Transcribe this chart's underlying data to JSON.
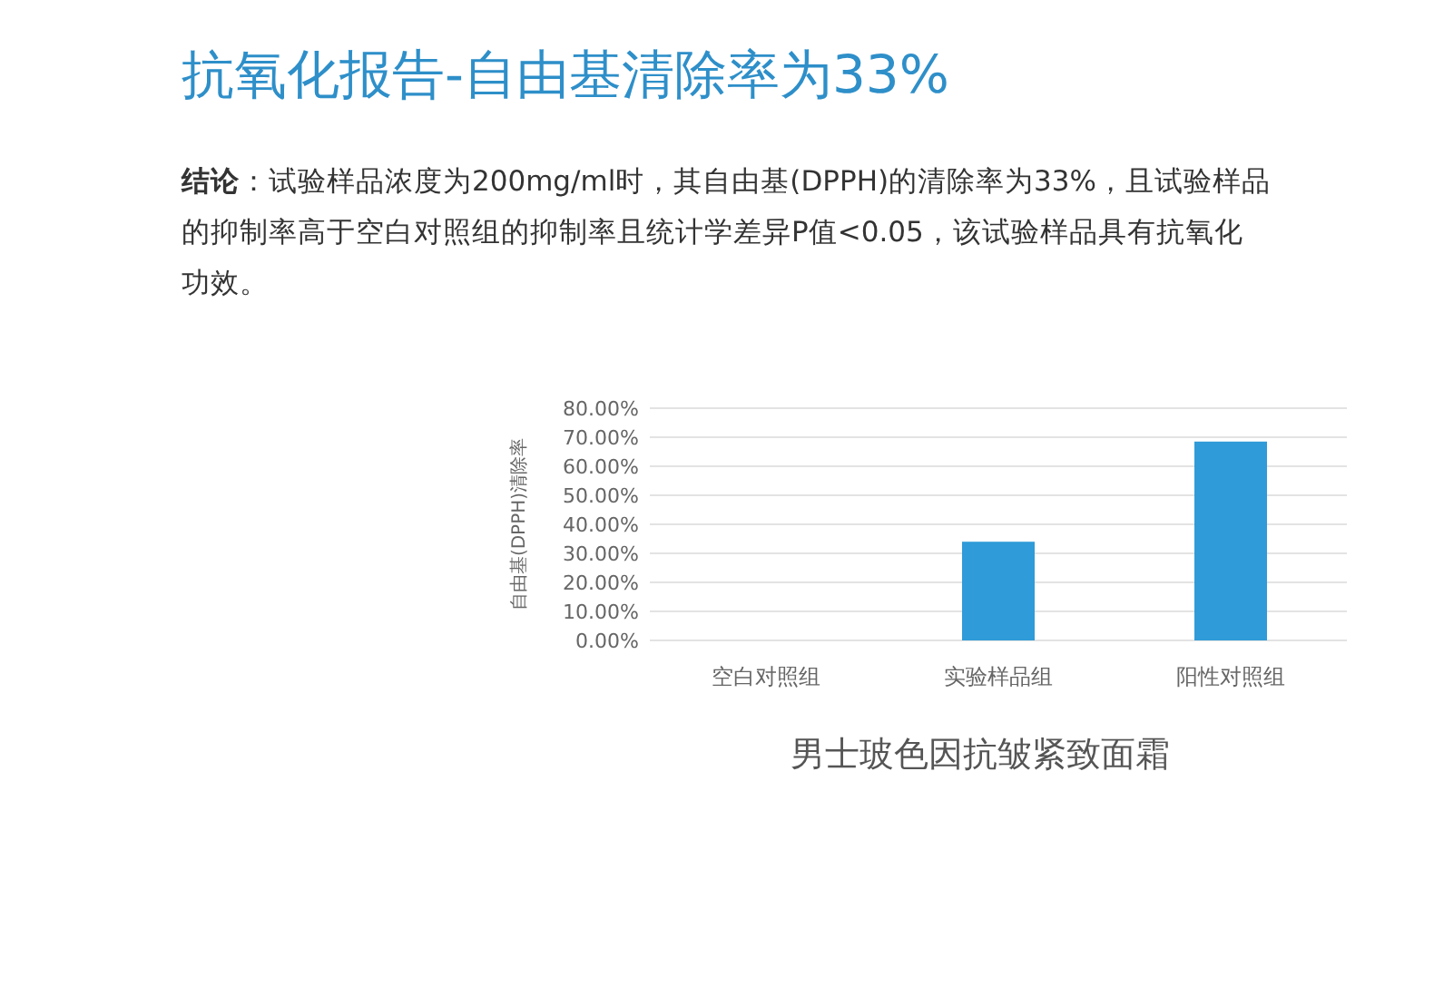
{
  "chart_data": {
    "type": "bar",
    "title": "抗氧化报告-自由基清除率为33%",
    "subtitle": "**结论**：试验样品浓度为200mg/ml时，其自由基(DPPH)的清除率为33%，且试验样品的抑制率高于空白对照组的抑制率且统计学差异P值<0.05，该试验样品具有抗氧化功效。",
    "xlabel": "男士玻色因抗皱紧致面霜",
    "ylabel": "自由基(DPPH)清除率",
    "categories": [
      "空白对照组",
      "实验样品组",
      "阳性对照组"
    ],
    "values": [
      0,
      34,
      68.5
    ],
    "color": "#2f9bd8",
    "ylim": [
      0,
      80
    ],
    "yticks": [
      {
        "value": 0,
        "label": "0.00%"
      },
      {
        "value": 10,
        "label": "10.00%"
      },
      {
        "value": 20,
        "label": "20.00%"
      },
      {
        "value": 30,
        "label": "30.00%"
      },
      {
        "value": 40,
        "label": "40.00%"
      },
      {
        "value": 50,
        "label": "50.00%"
      },
      {
        "value": 60,
        "label": "60.00%"
      },
      {
        "value": 70,
        "label": "70.00%"
      },
      {
        "value": 80,
        "label": "80.00%"
      }
    ],
    "grid": "y"
  }
}
